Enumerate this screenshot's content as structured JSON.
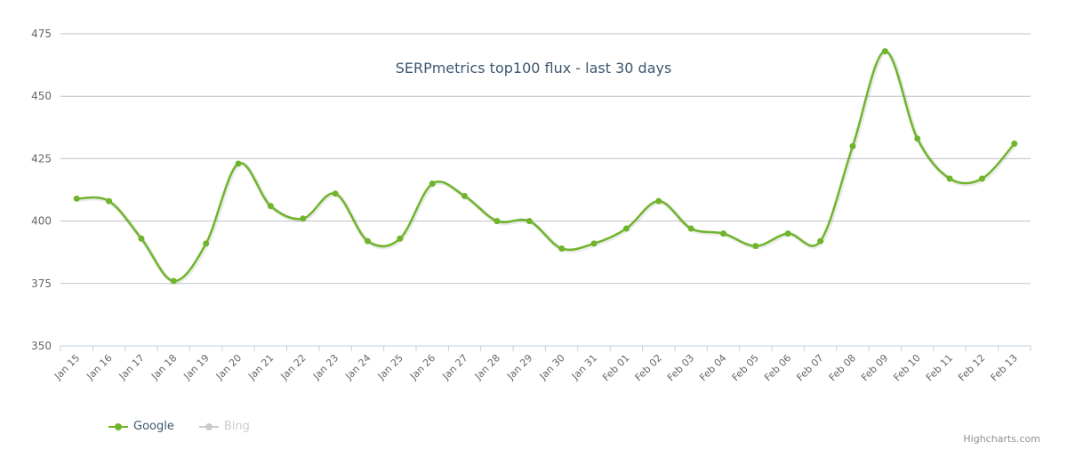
{
  "chart_data": {
    "type": "line",
    "title": "SERPmetrics top100 flux - last 30 days",
    "xlabel": "",
    "ylabel": "",
    "ylim": [
      350,
      475
    ],
    "yticks": [
      350,
      375,
      400,
      425,
      450,
      475
    ],
    "grid": true,
    "legend_position": "bottom-left",
    "categories": [
      "Jan 15",
      "Jan 16",
      "Jan 17",
      "Jan 18",
      "Jan 19",
      "Jan 20",
      "Jan 21",
      "Jan 22",
      "Jan 23",
      "Jan 24",
      "Jan 25",
      "Jan 26",
      "Jan 27",
      "Jan 28",
      "Jan 29",
      "Jan 30",
      "Jan 31",
      "Feb 01",
      "Feb 02",
      "Feb 03",
      "Feb 04",
      "Feb 05",
      "Feb 06",
      "Feb 07",
      "Feb 08",
      "Feb 09",
      "Feb 10",
      "Feb 11",
      "Feb 12",
      "Feb 13"
    ],
    "series": [
      {
        "name": "Google",
        "color": "#6fb52c",
        "visible": true,
        "values": [
          409,
          408,
          393,
          376,
          391,
          423,
          406,
          401,
          411,
          392,
          393,
          415,
          410,
          400,
          400,
          389,
          391,
          397,
          408,
          397,
          395,
          390,
          395,
          392,
          430,
          468,
          433,
          417,
          417,
          431
        ]
      },
      {
        "name": "Bing",
        "color": "#cccccc",
        "visible": false,
        "values": []
      }
    ]
  },
  "legend": {
    "items": [
      {
        "label": "Google",
        "color": "#6fb52c"
      },
      {
        "label": "Bing",
        "color": "#cccccc"
      }
    ]
  },
  "credit": "Highcharts.com"
}
